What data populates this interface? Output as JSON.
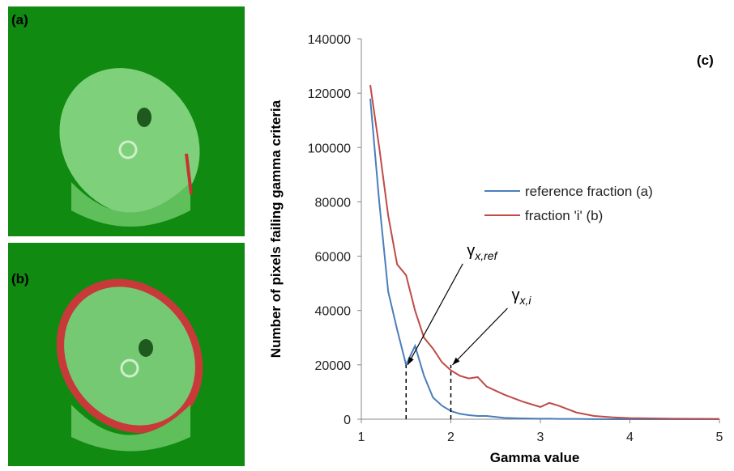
{
  "panels": {
    "a": "(a)",
    "b": "(b)"
  },
  "chart_data": {
    "type": "line",
    "panel_label": "(c)",
    "xlabel": "Gamma value",
    "ylabel": "Number of pixels failing gamma criteria",
    "x": [
      1.1,
      1.2,
      1.3,
      1.4,
      1.5,
      1.6,
      1.7,
      1.8,
      1.9,
      2.0,
      2.1,
      2.2,
      2.3,
      2.4,
      2.6,
      2.8,
      3.0,
      3.1,
      3.2,
      3.4,
      3.6,
      3.8,
      4.0,
      4.5,
      5.0
    ],
    "series": [
      {
        "name": "reference fraction (a)",
        "color": "#4a7ebb",
        "values": [
          118000,
          80000,
          47000,
          33000,
          20000,
          27000,
          16000,
          8000,
          5000,
          3000,
          2000,
          1500,
          1200,
          1200,
          500,
          300,
          200,
          200,
          100,
          100,
          50,
          0,
          0,
          0,
          0
        ]
      },
      {
        "name": "fraction 'i' (b)",
        "color": "#be4b48",
        "values": [
          123000,
          100000,
          75000,
          57000,
          53000,
          40000,
          30000,
          26000,
          21000,
          18000,
          16000,
          15000,
          15500,
          12000,
          9000,
          6500,
          4500,
          6000,
          5000,
          2500,
          1200,
          700,
          400,
          200,
          100
        ]
      }
    ],
    "xlim": [
      1,
      5
    ],
    "xticks": [
      1,
      2,
      3,
      4,
      5
    ],
    "ylim": [
      0,
      140000
    ],
    "yticks": [
      0,
      20000,
      40000,
      60000,
      80000,
      100000,
      120000,
      140000
    ],
    "grid": false,
    "legend": "right",
    "annotations": [
      {
        "symbol": "γ",
        "subscript": "x,ref",
        "x": 1.5,
        "y": 20000
      },
      {
        "symbol": "γ",
        "subscript": "x,i",
        "x": 2.0,
        "y": 20000
      }
    ]
  }
}
